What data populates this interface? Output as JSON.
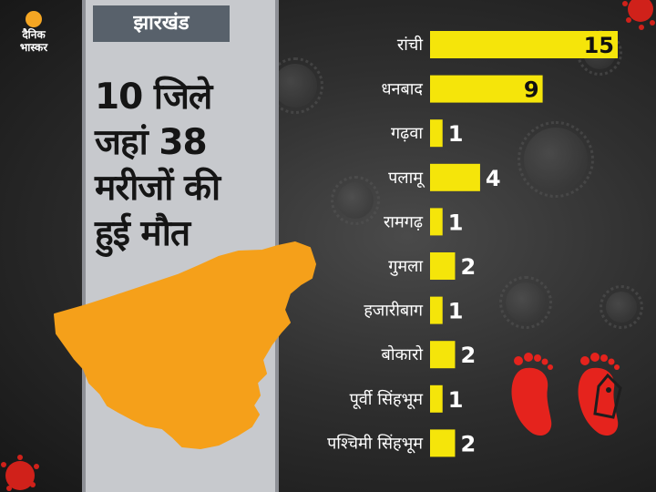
{
  "logo": {
    "line1": "दैनिक",
    "line2": "भास्कर"
  },
  "region_tag": "झारखंड",
  "headline": [
    "10 जिले",
    "जहां 38",
    "मरीजों की",
    "हुई मौत"
  ],
  "colors": {
    "bar": "#f5e50a",
    "map": "#f5a01a",
    "panel": "#c7c9cd",
    "tag": "#58616b",
    "feet": "#e5231d"
  },
  "icons": {
    "logo": "dainik-bhaskar-logo",
    "map": "jharkhand-map",
    "feet": "feet-with-tag-icon",
    "virus": "coronavirus-icon"
  },
  "chart_data": {
    "type": "bar",
    "orientation": "horizontal",
    "title": "",
    "xlabel": "",
    "ylabel": "",
    "categories": [
      "रांची",
      "धनबाद",
      "गढ़वा",
      "पलामू",
      "रामगढ़",
      "गुमला",
      "हजारीबाग",
      "बोकारो",
      "पूर्वी सिंहभूम",
      "पश्चिमी सिंहभूम"
    ],
    "values": [
      15,
      9,
      1,
      4,
      1,
      2,
      1,
      2,
      1,
      2
    ],
    "xlim": [
      0,
      15
    ],
    "grid": false,
    "legend": "none"
  }
}
